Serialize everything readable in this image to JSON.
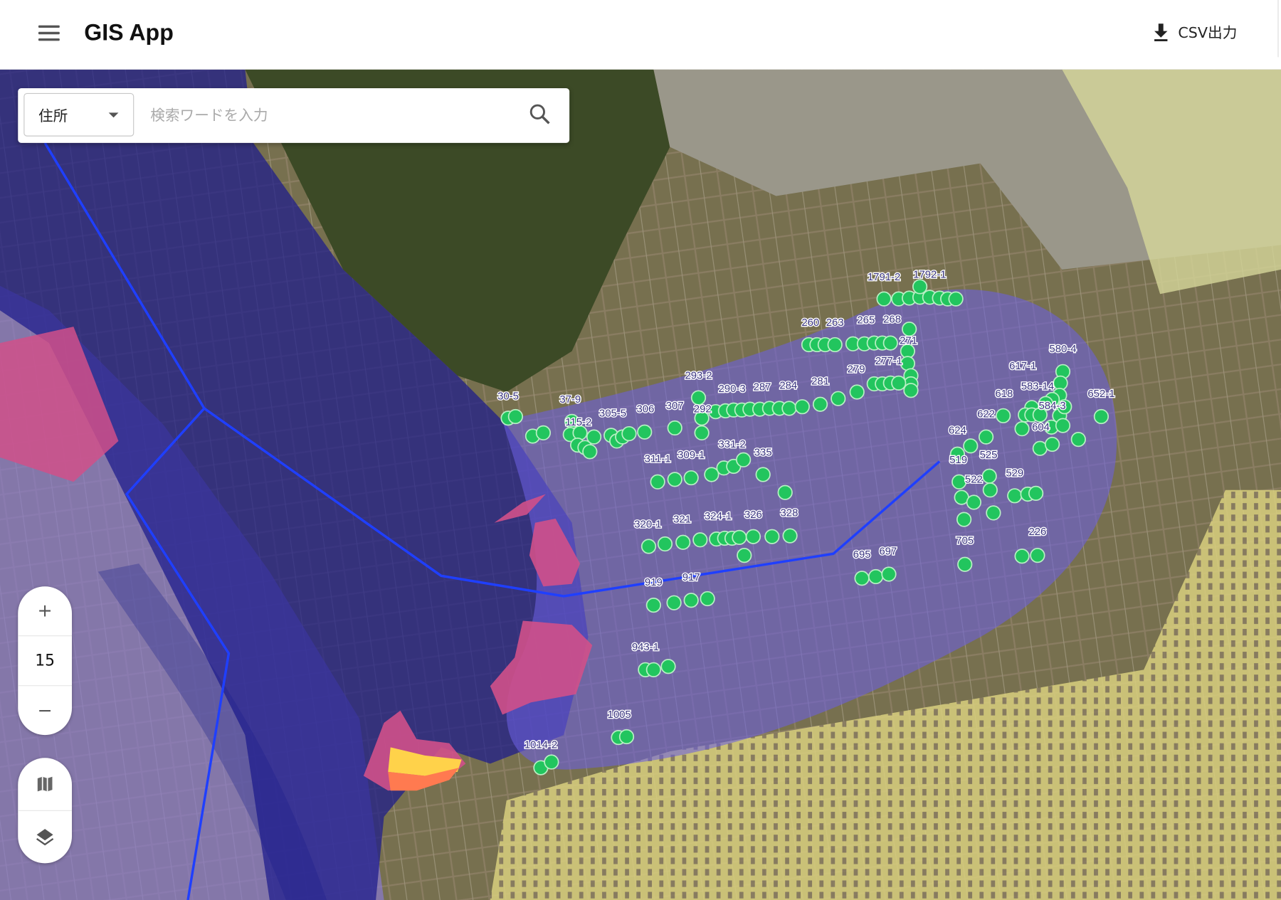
{
  "header": {
    "title": "GIS App",
    "csv_label": "CSV出力",
    "menu_icon": "hamburger-icon",
    "download_icon": "download-icon"
  },
  "search": {
    "type_value": "住所",
    "placeholder": "検索ワードを入力",
    "value": ""
  },
  "zoom": {
    "level": "15",
    "in_label": "+",
    "out_label": "−"
  },
  "map": {
    "parcel_labels": [
      "1791-2",
      "1792-1",
      "260",
      "263",
      "265",
      "268",
      "271",
      "277-1",
      "279",
      "281",
      "284",
      "287",
      "290-3",
      "293-2",
      "292",
      "307",
      "306",
      "305-5",
      "37-9",
      "30-5",
      "115-2",
      "311-1",
      "309-1",
      "331-2",
      "335",
      "320-1",
      "321",
      "324-1",
      "326",
      "328",
      "695",
      "697",
      "705",
      "226",
      "919",
      "917",
      "943-1",
      "1005",
      "1014-2",
      "580-4",
      "617-1",
      "618",
      "583-14",
      "584-3",
      "652-1",
      "622",
      "604",
      "624",
      "525",
      "519",
      "522",
      "529"
    ],
    "colors": {
      "point": "#22c55e",
      "area_dark": "#1c1a8c",
      "area_buffer": "#6a5fe0",
      "boundary_line": "#1f3fff",
      "hazard_pink": "#d0508a",
      "hazard_yellow": "#ffd24a",
      "hazard_orange": "#ff7a50",
      "farmland_yellow": "#e6dc8a"
    },
    "basemap": "satellite"
  }
}
